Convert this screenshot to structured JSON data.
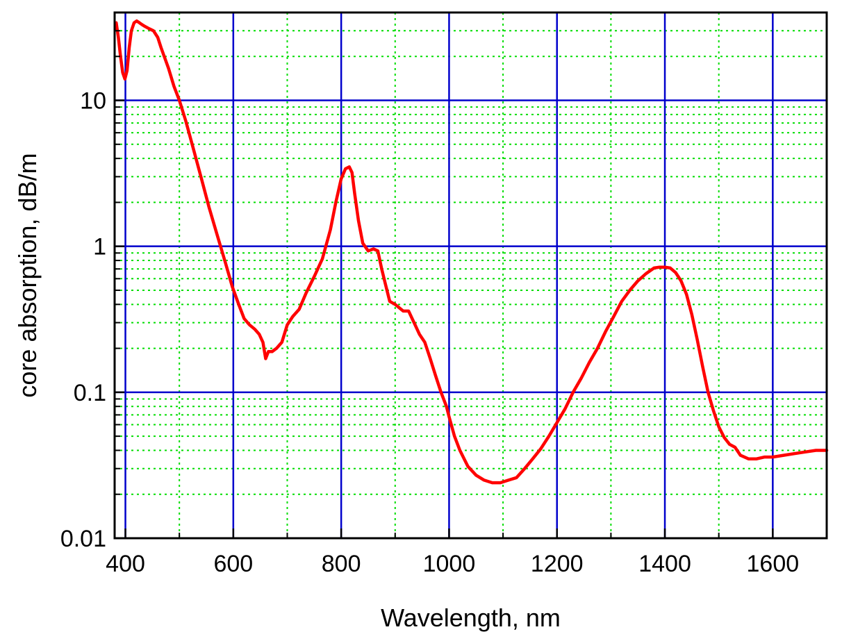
{
  "chart_data": {
    "type": "line",
    "title": "",
    "xlabel": "Wavelength, nm",
    "ylabel": "core absorption, dB/m",
    "xlim": [
      380,
      1700
    ],
    "ylim": [
      0.01,
      40
    ],
    "y_scale": "log",
    "x_ticks": [
      400,
      600,
      800,
      1000,
      1200,
      1400,
      1600
    ],
    "x_tick_labels": [
      "400",
      "600",
      "800",
      "1000",
      "1200",
      "1400",
      "1600"
    ],
    "x_minor_ticks": [
      500,
      700,
      900,
      1100,
      1300,
      1500,
      1700
    ],
    "y_ticks": [
      0.01,
      0.1,
      1,
      10
    ],
    "y_tick_labels": [
      "0.01",
      "0.1",
      "1",
      "10"
    ],
    "grid": {
      "major": true,
      "minor": true,
      "major_color": "#0000cc",
      "minor_color": "#00dd00",
      "minor_style": "dotted"
    },
    "colors": {
      "series": "#ff0000",
      "axes": "#000000",
      "background": "#ffffff"
    },
    "series": [
      {
        "color": "#ff0000",
        "x": [
          383,
          387,
          391,
          395,
          399,
          403,
          407,
          411,
          416,
          421,
          426,
          431,
          437,
          444,
          452,
          460,
          466,
          472,
          480,
          490,
          500,
          512,
          525,
          540,
          555,
          570,
          585,
          598,
          610,
          620,
          630,
          640,
          648,
          655,
          660,
          665,
          672,
          680,
          690,
          700,
          710,
          722,
          735,
          750,
          765,
          780,
          790,
          800,
          808,
          815,
          820,
          825,
          832,
          840,
          850,
          860,
          868,
          875,
          882,
          890,
          900,
          915,
          925,
          935,
          945,
          955,
          965,
          975,
          985,
          995,
          1000,
          1010,
          1020,
          1035,
          1050,
          1065,
          1080,
          1095,
          1110,
          1125,
          1140,
          1155,
          1170,
          1185,
          1200,
          1215,
          1230,
          1245,
          1260,
          1275,
          1290,
          1305,
          1320,
          1335,
          1350,
          1365,
          1380,
          1390,
          1400,
          1410,
          1420,
          1430,
          1440,
          1450,
          1460,
          1470,
          1480,
          1490,
          1500,
          1510,
          1520,
          1530,
          1540,
          1555,
          1570,
          1585,
          1600,
          1620,
          1640,
          1660,
          1680,
          1700
        ],
        "y": [
          34,
          27,
          20,
          15.5,
          14,
          16,
          23,
          30,
          34,
          35,
          34,
          33,
          32,
          31,
          30,
          27,
          23,
          20,
          16.5,
          12.5,
          10,
          7.2,
          4.8,
          3,
          1.85,
          1.2,
          0.78,
          0.53,
          0.4,
          0.32,
          0.29,
          0.27,
          0.25,
          0.22,
          0.17,
          0.19,
          0.19,
          0.2,
          0.22,
          0.29,
          0.33,
          0.37,
          0.48,
          0.62,
          0.82,
          1.3,
          2,
          2.9,
          3.4,
          3.5,
          3.2,
          2.3,
          1.5,
          1.05,
          0.93,
          0.96,
          0.93,
          0.7,
          0.55,
          0.42,
          0.4,
          0.36,
          0.36,
          0.3,
          0.25,
          0.22,
          0.17,
          0.13,
          0.1,
          0.08,
          0.068,
          0.05,
          0.04,
          0.031,
          0.027,
          0.025,
          0.024,
          0.024,
          0.025,
          0.026,
          0.03,
          0.035,
          0.041,
          0.05,
          0.062,
          0.077,
          0.1,
          0.125,
          0.16,
          0.2,
          0.26,
          0.33,
          0.42,
          0.5,
          0.58,
          0.65,
          0.71,
          0.72,
          0.72,
          0.71,
          0.66,
          0.58,
          0.47,
          0.34,
          0.23,
          0.15,
          0.1,
          0.075,
          0.058,
          0.049,
          0.044,
          0.042,
          0.037,
          0.035,
          0.035,
          0.036,
          0.036,
          0.037,
          0.038,
          0.039,
          0.04,
          0.04
        ]
      }
    ]
  }
}
